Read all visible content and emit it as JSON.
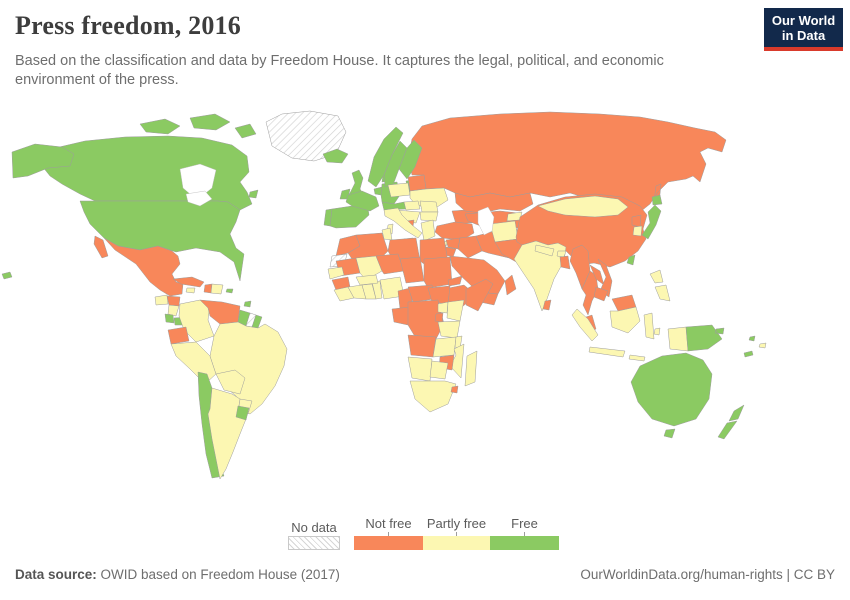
{
  "header": {
    "title": "Press freedom, 2016",
    "subtitle": "Based on the classification and data by Freedom House. It captures the legal, political, and economic environment of the press."
  },
  "logo": {
    "line1": "Our World",
    "line2": "in Data",
    "bg_color": "#12294b",
    "bar_color": "#d93a2b"
  },
  "legend": {
    "no_data_label": "No data",
    "categories": [
      {
        "label": "Not free",
        "color": "#f8875a"
      },
      {
        "label": "Partly free",
        "color": "#fcf7b2"
      },
      {
        "label": "Free",
        "color": "#8bca62"
      }
    ]
  },
  "footer": {
    "source_prefix": "Data source:",
    "source_text": "OWID based on Freedom House (2017)",
    "link_text": "OurWorldinData.org/human-rights | CC BY"
  },
  "chart_data": {
    "type": "choropleth",
    "title": "Press freedom, 2016",
    "year": 2016,
    "legend_position": "bottom",
    "categories": [
      "Not free",
      "Partly free",
      "Free",
      "No data"
    ],
    "colors": {
      "Not free": "#f8875a",
      "Partly free": "#fcf7b2",
      "Free": "#8bca62",
      "No data": "hatched"
    },
    "countries": {
      "Russia": "Not free",
      "Canada": "Free",
      "Greenland": "No data",
      "United States": "Free",
      "Mexico": "Not free",
      "Guatemala": "Partly free",
      "Honduras": "Not free",
      "Nicaragua": "Partly free",
      "Costa Rica": "Free",
      "Panama": "Free",
      "Cuba": "Not free",
      "Jamaica": "Partly free",
      "Haiti": "Not free",
      "Dominican Republic": "Partly free",
      "Puerto Rico": "Free",
      "Trinidad & Tobago": "Free",
      "Colombia": "Partly free",
      "Venezuela": "Not free",
      "Guyana": "Free",
      "Suriname": "No data",
      "French Guiana": "Free",
      "Ecuador": "Not free",
      "Peru": "Partly free",
      "Brazil": "Partly free",
      "Bolivia": "Partly free",
      "Paraguay": "Partly free",
      "Chile": "Free",
      "Argentina": "Partly free",
      "Uruguay": "Free",
      "Iceland": "Free",
      "Ireland": "Free",
      "United Kingdom": "Free",
      "Portugal": "Free",
      "Spain": "Free",
      "France": "Free",
      "Belgium & Netherlands": "Free",
      "Germany": "Free",
      "Denmark": "Free",
      "Norway": "Free",
      "Sweden": "Free",
      "Finland": "Free",
      "Baltic states": "Free",
      "Poland": "Partly free",
      "Belarus": "Not free",
      "Ukraine": "Partly free",
      "Czechia & Austria": "Free",
      "Hungary": "Partly free",
      "Romania": "Partly free",
      "Western Balkans": "Partly free",
      "Albania & Macedonia": "Not free",
      "Bulgaria": "Partly free",
      "Greece": "Partly free",
      "Italy": "Partly free",
      "Cyprus": "Partly free",
      "Caucasus": "Not free",
      "Kazakhstan": "Not free",
      "Uzbekistan & Turkmenistan": "Not free",
      "Kyrgyzstan": "Partly free",
      "Tajikistan": "Not free",
      "Turkey": "Not free",
      "Syria": "Not free",
      "Israel": "Partly free",
      "Jordan": "Not free",
      "Iraq": "Not free",
      "Iran": "Not free",
      "Saudi Arabia": "Not free",
      "Yemen": "Not free",
      "Oman": "Not free",
      "Afghanistan": "Partly free",
      "Pakistan": "Not free",
      "China": "Not free",
      "Mongolia": "Partly free",
      "India": "Partly free",
      "Nepal": "Partly free",
      "Bhutan": "Partly free",
      "Bangladesh": "Not free",
      "Sri Lanka": "Not free",
      "North Korea": "Not free",
      "South Korea": "Partly free",
      "Japan": "Free",
      "Taiwan": "Free",
      "Myanmar": "Not free",
      "Thailand": "Not free",
      "Laos": "Not free",
      "Vietnam": "Not free",
      "Cambodia": "Not free",
      "Malaysia": "Not free",
      "Indonesia": "Partly free",
      "Philippines": "Partly free",
      "Papua New Guinea": "Free",
      "Australia": "Free",
      "New Zealand": "Free",
      "Vanuatu": "Free",
      "New Caledonia": "Free",
      "Fiji": "Partly free",
      "Morocco": "Not free",
      "Western Sahara": "No data",
      "Algeria": "Not free",
      "Tunisia": "Partly free",
      "Libya": "Not free",
      "Egypt": "Not free",
      "Mauritania": "Not free",
      "Mali": "Partly free",
      "Niger": "Not free",
      "Chad": "Not free",
      "Sudan": "Not free",
      "Eritrea": "Not free",
      "Ethiopia": "Not free",
      "Somalia": "Not free",
      "Senegal": "Partly free",
      "Guinea": "Not free",
      "Sierra Leone & Liberia": "Partly free",
      "Ivory Coast": "Partly free",
      "Ghana": "Partly free",
      "Togo & Benin": "Partly free",
      "Burkina Faso": "Partly free",
      "Nigeria": "Partly free",
      "Cameroon": "Not free",
      "Central African Republic": "Not free",
      "South Sudan": "Not free",
      "Gabon & Congo": "Not free",
      "DR Congo": "Not free",
      "Uganda": "Partly free",
      "Kenya": "Partly free",
      "Rwanda & Burundi": "Not free",
      "Tanzania": "Partly free",
      "Angola": "Not free",
      "Zambia": "Partly free",
      "Malawi": "Partly free",
      "Mozambique": "Partly free",
      "Zimbabwe": "Not free",
      "Namibia": "Partly free",
      "Botswana": "Partly free",
      "South Africa": "Partly free",
      "Swaziland": "Not free",
      "Madagascar": "Partly free"
    }
  }
}
